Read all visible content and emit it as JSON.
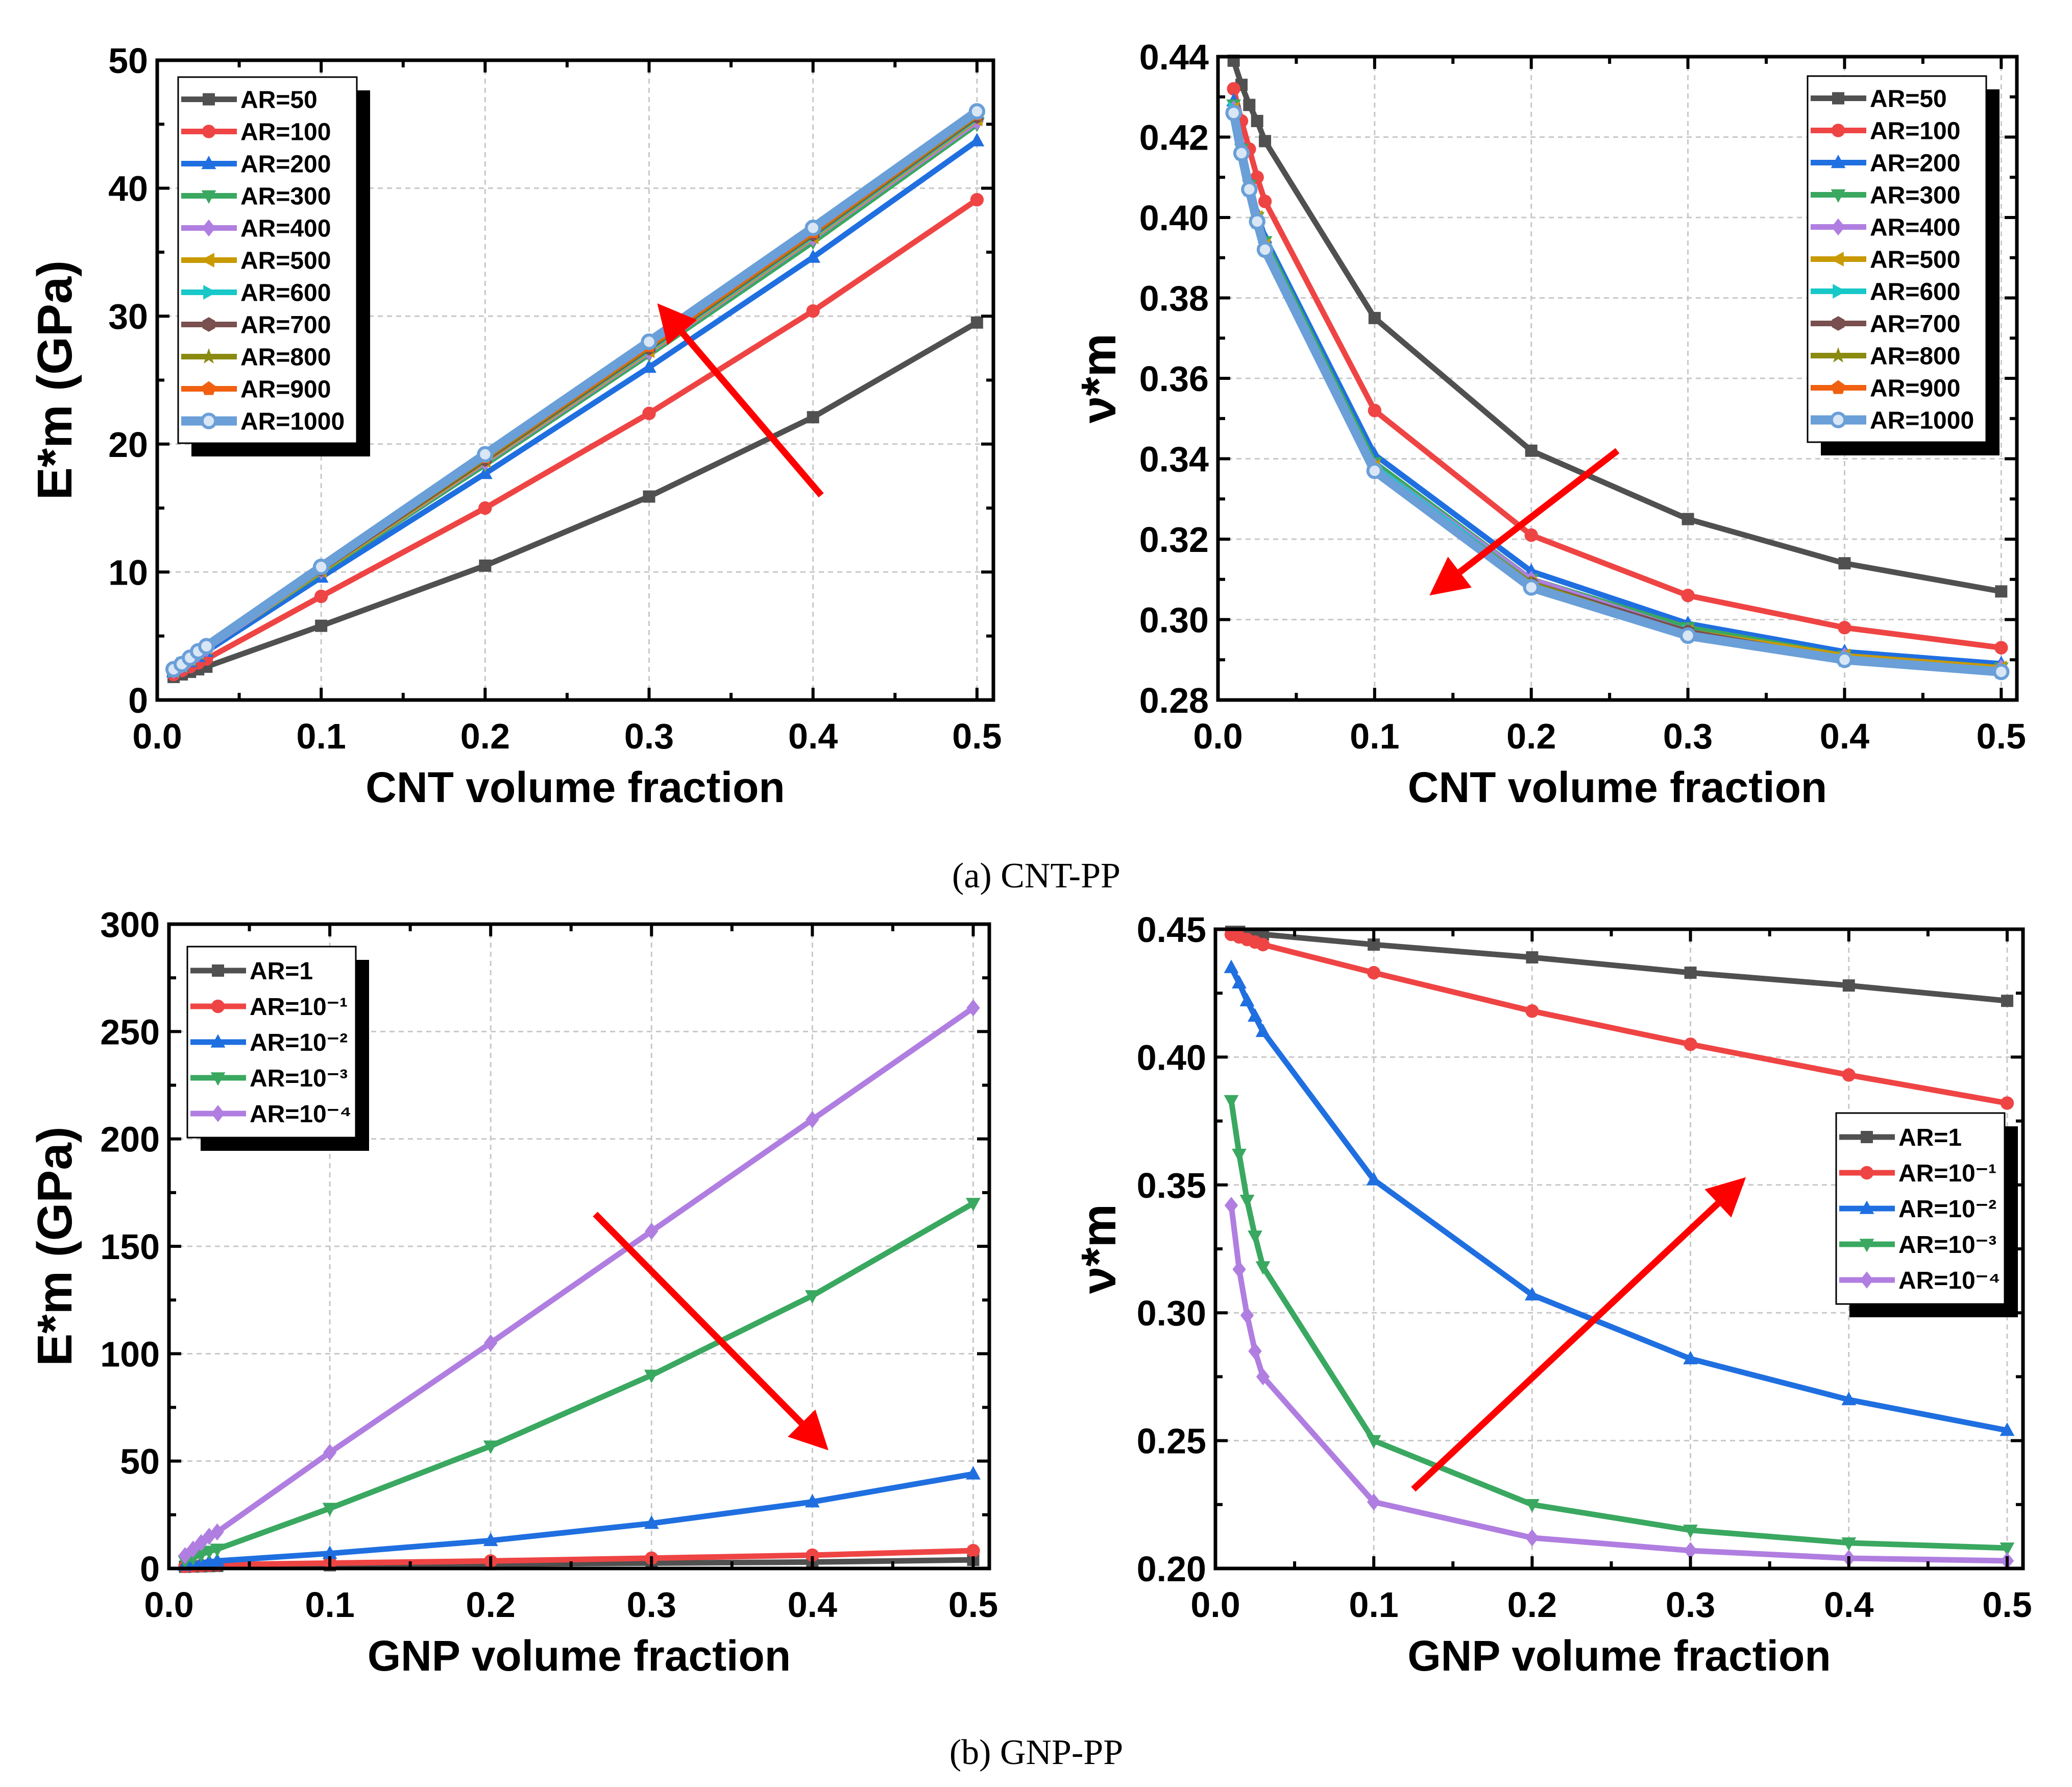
{
  "captions": {
    "a": "(a) CNT-PP",
    "b": "(b) GNP-PP"
  },
  "chart_data": [
    {
      "type": "line",
      "title": "",
      "xlabel": "CNT volume fraction",
      "ylabel": "E*m (GPa)",
      "xlim": [
        0,
        0.51
      ],
      "ylim": [
        0,
        50
      ],
      "xticks": [
        "0.0",
        "0.1",
        "0.2",
        "0.3",
        "0.4",
        "0.5"
      ],
      "yticks": [
        "0",
        "10",
        "20",
        "30",
        "40",
        "50"
      ],
      "grid": true,
      "legend_position": "top-left",
      "arrow": {
        "from": [
          0.405,
          16
        ],
        "to": [
          0.305,
          31
        ],
        "color": "#ff0000"
      },
      "x": [
        0.01,
        0.015,
        0.02,
        0.025,
        0.03,
        0.1,
        0.2,
        0.3,
        0.4,
        0.5
      ],
      "series": [
        {
          "name": "AR=50",
          "color": "#505050",
          "marker": "square",
          "values": [
            1.8,
            2.0,
            2.2,
            2.4,
            2.6,
            5.8,
            10.5,
            15.9,
            22.1,
            29.5
          ]
        },
        {
          "name": "AR=100",
          "color": "#ef4444",
          "marker": "circle",
          "values": [
            2.0,
            2.3,
            2.6,
            2.9,
            3.2,
            8.1,
            15.0,
            22.4,
            30.4,
            39.1
          ]
        },
        {
          "name": "AR=200",
          "color": "#1f6fe0",
          "marker": "triangle-up",
          "values": [
            2.2,
            2.6,
            3.0,
            3.4,
            3.8,
            9.6,
            17.7,
            26.0,
            34.6,
            43.7
          ]
        },
        {
          "name": "AR=300",
          "color": "#3aa860",
          "marker": "triangle-down",
          "values": [
            2.3,
            2.7,
            3.1,
            3.6,
            4.0,
            10.0,
            18.4,
            27.0,
            35.8,
            45.0
          ]
        },
        {
          "name": "AR=400",
          "color": "#b07ee0",
          "marker": "diamond",
          "values": [
            2.3,
            2.7,
            3.2,
            3.6,
            4.0,
            10.1,
            18.6,
            27.2,
            36.1,
            45.2
          ]
        },
        {
          "name": "AR=500",
          "color": "#c89a00",
          "marker": "triangle-left",
          "values": [
            2.3,
            2.7,
            3.2,
            3.7,
            4.1,
            10.1,
            18.7,
            27.3,
            36.2,
            45.4
          ]
        },
        {
          "name": "AR=600",
          "color": "#18c8c8",
          "marker": "triangle-right",
          "values": [
            2.3,
            2.8,
            3.2,
            3.7,
            4.1,
            10.2,
            18.8,
            27.4,
            36.3,
            45.5
          ]
        },
        {
          "name": "AR=700",
          "color": "#7a4f4f",
          "marker": "hexagon",
          "values": [
            2.4,
            2.8,
            3.2,
            3.7,
            4.1,
            10.2,
            18.8,
            27.5,
            36.4,
            45.6
          ]
        },
        {
          "name": "AR=800",
          "color": "#8a8a10",
          "marker": "star",
          "values": [
            2.4,
            2.8,
            3.3,
            3.7,
            4.2,
            10.3,
            18.9,
            27.6,
            36.5,
            45.7
          ]
        },
        {
          "name": "AR=900",
          "color": "#f06010",
          "marker": "pentagon",
          "values": [
            2.4,
            2.8,
            3.3,
            3.8,
            4.2,
            10.3,
            19.0,
            27.7,
            36.6,
            45.8
          ]
        },
        {
          "name": "AR=1000",
          "color": "#6a9fd8",
          "marker": "circle-light",
          "values": [
            2.4,
            2.8,
            3.3,
            3.8,
            4.2,
            10.4,
            19.2,
            28.0,
            36.9,
            46.0
          ]
        }
      ]
    },
    {
      "type": "line",
      "title": "",
      "xlabel": "CNT volume fraction",
      "ylabel": "ν*m",
      "xlim": [
        0,
        0.51
      ],
      "ylim": [
        0.28,
        0.44
      ],
      "xticks": [
        "0.0",
        "0.1",
        "0.2",
        "0.3",
        "0.4",
        "0.5"
      ],
      "yticks": [
        "0.28",
        "0.30",
        "0.32",
        "0.34",
        "0.36",
        "0.38",
        "0.40",
        "0.42",
        "0.44"
      ],
      "grid": true,
      "legend_position": "top-right",
      "arrow": {
        "from": [
          0.255,
          0.342
        ],
        "to": [
          0.135,
          0.306
        ],
        "color": "#ff0000"
      },
      "x": [
        0.01,
        0.015,
        0.02,
        0.025,
        0.03,
        0.1,
        0.2,
        0.3,
        0.4,
        0.5
      ],
      "series": [
        {
          "name": "AR=50",
          "color": "#505050",
          "marker": "square",
          "values": [
            0.439,
            0.433,
            0.428,
            0.424,
            0.419,
            0.375,
            0.342,
            0.325,
            0.314,
            0.307
          ]
        },
        {
          "name": "AR=100",
          "color": "#ef4444",
          "marker": "circle",
          "values": [
            0.432,
            0.424,
            0.417,
            0.41,
            0.404,
            0.352,
            0.321,
            0.306,
            0.298,
            0.293
          ]
        },
        {
          "name": "AR=200",
          "color": "#1f6fe0",
          "marker": "triangle-up",
          "values": [
            0.429,
            0.418,
            0.409,
            0.401,
            0.395,
            0.341,
            0.312,
            0.299,
            0.292,
            0.289
          ]
        },
        {
          "name": "AR=300",
          "color": "#3aa860",
          "marker": "triangle-down",
          "values": [
            0.428,
            0.417,
            0.408,
            0.4,
            0.394,
            0.339,
            0.31,
            0.298,
            0.291,
            0.288
          ]
        },
        {
          "name": "AR=400",
          "color": "#b07ee0",
          "marker": "diamond",
          "values": [
            0.427,
            0.417,
            0.408,
            0.4,
            0.393,
            0.338,
            0.31,
            0.297,
            0.291,
            0.288
          ]
        },
        {
          "name": "AR=500",
          "color": "#c89a00",
          "marker": "triangle-left",
          "values": [
            0.427,
            0.416,
            0.407,
            0.4,
            0.393,
            0.338,
            0.309,
            0.297,
            0.291,
            0.288
          ]
        },
        {
          "name": "AR=600",
          "color": "#18c8c8",
          "marker": "triangle-right",
          "values": [
            0.427,
            0.416,
            0.407,
            0.399,
            0.393,
            0.338,
            0.309,
            0.297,
            0.29,
            0.287
          ]
        },
        {
          "name": "AR=700",
          "color": "#7a4f4f",
          "marker": "hexagon",
          "values": [
            0.426,
            0.416,
            0.407,
            0.399,
            0.392,
            0.337,
            0.309,
            0.297,
            0.29,
            0.287
          ]
        },
        {
          "name": "AR=800",
          "color": "#8a8a10",
          "marker": "star",
          "values": [
            0.426,
            0.416,
            0.407,
            0.399,
            0.392,
            0.337,
            0.309,
            0.296,
            0.29,
            0.287
          ]
        },
        {
          "name": "AR=900",
          "color": "#f06010",
          "marker": "pentagon",
          "values": [
            0.426,
            0.416,
            0.407,
            0.399,
            0.392,
            0.337,
            0.308,
            0.296,
            0.29,
            0.287
          ]
        },
        {
          "name": "AR=1000",
          "color": "#6a9fd8",
          "marker": "circle-light",
          "values": [
            0.426,
            0.416,
            0.407,
            0.399,
            0.392,
            0.337,
            0.308,
            0.296,
            0.29,
            0.287
          ]
        }
      ]
    },
    {
      "type": "line",
      "title": "",
      "xlabel": "GNP volume fraction",
      "ylabel": "E*m (GPa)",
      "xlim": [
        0,
        0.51
      ],
      "ylim": [
        0,
        300
      ],
      "xticks": [
        "0.0",
        "0.1",
        "0.2",
        "0.3",
        "0.4",
        "0.5"
      ],
      "yticks": [
        "0",
        "50",
        "100",
        "150",
        "200",
        "250",
        "300"
      ],
      "grid": true,
      "legend_position": "top-left",
      "arrow": {
        "from": [
          0.265,
          165
        ],
        "to": [
          0.41,
          55
        ],
        "color": "#ff0000"
      },
      "x": [
        0.01,
        0.015,
        0.02,
        0.025,
        0.03,
        0.1,
        0.2,
        0.3,
        0.4,
        0.5
      ],
      "series": [
        {
          "name": "AR=1",
          "color": "#505050",
          "marker": "square",
          "values": [
            0.8,
            0.9,
            1.0,
            1.1,
            1.2,
            1.5,
            2.0,
            2.5,
            3.0,
            4.0
          ]
        },
        {
          "name": "AR=10⁻¹",
          "color": "#ef4444",
          "marker": "circle",
          "values": [
            1.0,
            1.2,
            1.4,
            1.6,
            1.8,
            2.5,
            3.5,
            4.8,
            6.2,
            8.3
          ]
        },
        {
          "name": "AR=10⁻²",
          "color": "#1f6fe0",
          "marker": "triangle-up",
          "values": [
            1.5,
            2.0,
            2.5,
            3.0,
            3.5,
            7,
            13,
            21,
            31,
            44
          ]
        },
        {
          "name": "AR=10⁻³",
          "color": "#3aa860",
          "marker": "triangle-down",
          "values": [
            3.5,
            5,
            6.5,
            8,
            9,
            28,
            57,
            90,
            127,
            170
          ]
        },
        {
          "name": "AR=10⁻⁴",
          "color": "#b07ee0",
          "marker": "diamond",
          "values": [
            6,
            9,
            12,
            15,
            17,
            54,
            105,
            157,
            209,
            261
          ]
        }
      ]
    },
    {
      "type": "line",
      "title": "",
      "xlabel": "GNP volume fraction",
      "ylabel": "ν*m",
      "xlim": [
        0,
        0.51
      ],
      "ylim": [
        0.2,
        0.45
      ],
      "xticks": [
        "0.0",
        "0.1",
        "0.2",
        "0.3",
        "0.4",
        "0.5"
      ],
      "yticks": [
        "0.20",
        "0.25",
        "0.30",
        "0.35",
        "0.40",
        "0.45"
      ],
      "grid": true,
      "legend_position": "right",
      "arrow": {
        "from": [
          0.125,
          0.231
        ],
        "to": [
          0.335,
          0.353
        ],
        "color": "#ff0000"
      },
      "x": [
        0.01,
        0.015,
        0.02,
        0.025,
        0.03,
        0.1,
        0.2,
        0.3,
        0.4,
        0.5
      ],
      "series": [
        {
          "name": "AR=1",
          "color": "#505050",
          "marker": "square",
          "values": [
            0.449,
            0.449,
            0.448,
            0.448,
            0.448,
            0.444,
            0.439,
            0.433,
            0.428,
            0.422
          ]
        },
        {
          "name": "AR=10⁻¹",
          "color": "#ef4444",
          "marker": "circle",
          "values": [
            0.448,
            0.447,
            0.446,
            0.445,
            0.444,
            0.433,
            0.418,
            0.405,
            0.393,
            0.382
          ]
        },
        {
          "name": "AR=10⁻²",
          "color": "#1f6fe0",
          "marker": "triangle-up",
          "values": [
            0.435,
            0.429,
            0.422,
            0.416,
            0.41,
            0.352,
            0.307,
            0.282,
            0.266,
            0.254
          ]
        },
        {
          "name": "AR=10⁻³",
          "color": "#3aa860",
          "marker": "triangle-down",
          "values": [
            0.383,
            0.362,
            0.344,
            0.33,
            0.318,
            0.25,
            0.225,
            0.215,
            0.21,
            0.208
          ]
        },
        {
          "name": "AR=10⁻⁴",
          "color": "#b07ee0",
          "marker": "diamond",
          "values": [
            0.342,
            0.317,
            0.299,
            0.285,
            0.275,
            0.226,
            0.212,
            0.207,
            0.204,
            0.203
          ]
        }
      ]
    }
  ]
}
